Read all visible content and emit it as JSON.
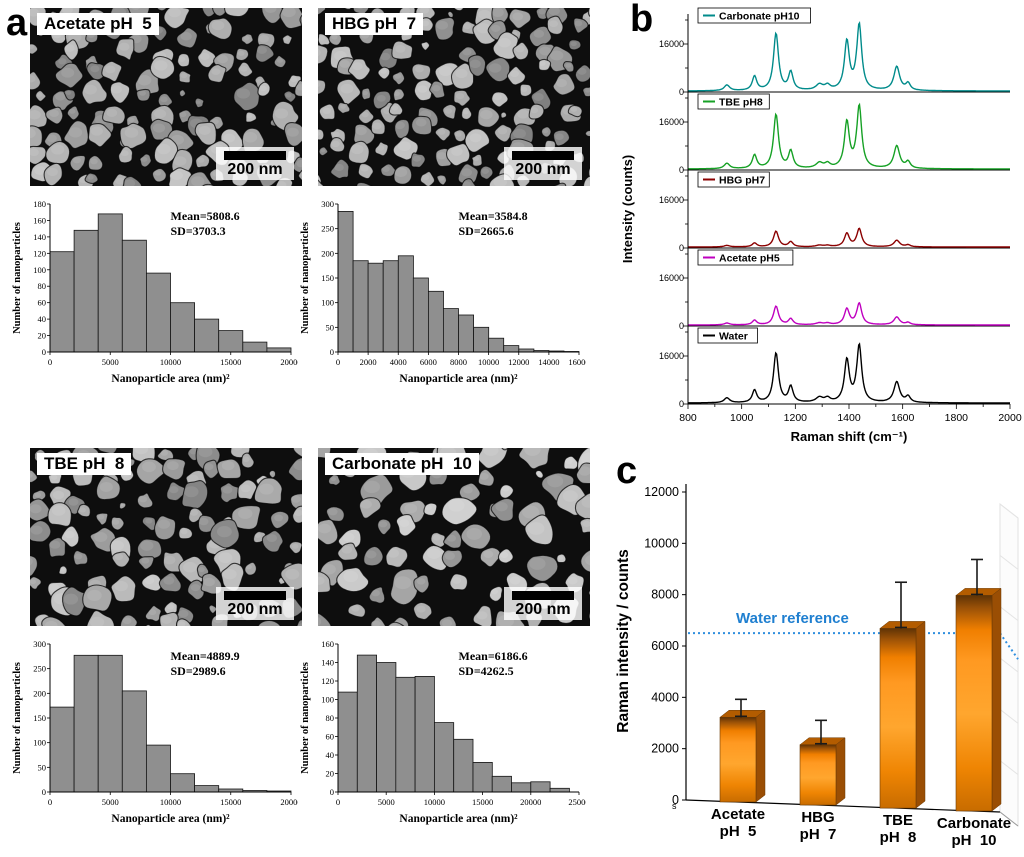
{
  "panels": {
    "a": "a",
    "b": "b",
    "c": "c"
  },
  "panel_a": {
    "subpanels": [
      {
        "id": "acetate-ph5",
        "title": "Acetate pH  5",
        "scalebar": "200 nm",
        "chart_index": 0,
        "sem": {
          "seed": 11,
          "radius": 10.5,
          "gray": 128
        }
      },
      {
        "id": "hbg-ph7",
        "title": "HBG pH  7",
        "scalebar": "200 nm",
        "chart_index": 1,
        "sem": {
          "seed": 22,
          "radius": 10,
          "gray": 128
        }
      },
      {
        "id": "tbe-ph8",
        "title": "TBE pH  8",
        "scalebar": "200 nm",
        "chart_index": 2,
        "sem": {
          "seed": 33,
          "radius": 11,
          "gray": 132
        }
      },
      {
        "id": "carbonate-ph10",
        "title": "Carbonate pH  10",
        "scalebar": "200 nm",
        "chart_index": 3,
        "sem": {
          "seed": 44,
          "radius": 13.5,
          "gray": 140
        }
      }
    ]
  },
  "chart_data": [
    {
      "type": "bar",
      "role": "histogram",
      "title": "Acetate pH 5",
      "mean_label": "Mean=5808.6",
      "sd_label": "SD=3703.3",
      "xlabel": "Nanoparticle area (nm)²",
      "ylabel": "Number of nanoparticles",
      "bin_start": 0,
      "bin_width": 2000,
      "values": [
        122,
        148,
        168,
        136,
        96,
        60,
        40,
        26,
        12,
        5
      ],
      "ylim": [
        0,
        180
      ],
      "ytick_step": 20,
      "xlim": [
        0,
        20000
      ],
      "xtick_step": 5000
    },
    {
      "type": "bar",
      "role": "histogram",
      "title": "HBG pH 7",
      "mean_label": "Mean=3584.8",
      "sd_label": "SD=2665.6",
      "xlabel": "Nanoparticle area (nm)²",
      "ylabel": "Number of nanoparticles",
      "bin_start": 0,
      "bin_width": 1000,
      "values": [
        285,
        185,
        180,
        185,
        195,
        150,
        123,
        88,
        75,
        50,
        28,
        13,
        6,
        3,
        2,
        1
      ],
      "ylim": [
        0,
        300
      ],
      "ytick_step": 50,
      "xlim": [
        0,
        16000
      ],
      "xtick_step": 2000
    },
    {
      "type": "bar",
      "role": "histogram",
      "title": "TBE pH 8",
      "mean_label": "Mean=4889.9",
      "sd_label": "SD=2989.6",
      "xlabel": "Nanoparticle area (nm)²",
      "ylabel": "Number of nanoparticles",
      "bin_start": 0,
      "bin_width": 2000,
      "values": [
        172,
        277,
        277,
        205,
        95,
        37,
        13,
        6,
        3,
        2
      ],
      "ylim": [
        0,
        300
      ],
      "ytick_step": 50,
      "xlim": [
        0,
        20000
      ],
      "xtick_step": 5000
    },
    {
      "type": "bar",
      "role": "histogram",
      "title": "Carbonate pH 10",
      "mean_label": "Mean=6186.6",
      "sd_label": "SD=4262.5",
      "xlabel": "Nanoparticle area (nm)²",
      "ylabel": "Number of nanoparticles",
      "bin_start": 0,
      "bin_width": 2000,
      "values": [
        108,
        148,
        140,
        124,
        125,
        75,
        57,
        32,
        17,
        10,
        11,
        4
      ],
      "ylim": [
        0,
        160
      ],
      "ytick_step": 20,
      "xlim": [
        0,
        25000
      ],
      "xtick_step": 5000
    },
    {
      "type": "line",
      "role": "raman_spectra",
      "xlabel": "Raman shift (cm⁻¹)",
      "ylabel": "Intensity (counts)",
      "x_range": [
        800,
        2000
      ],
      "xtick_step": 200,
      "panel_ymax": 26000,
      "ytick_value": 16000,
      "ytick_label": "16000",
      "yzero_label": "0",
      "peaks": [
        [
          945,
          12,
          0.1
        ],
        [
          1048,
          10,
          0.25
        ],
        [
          1128,
          11,
          1.0
        ],
        [
          1183,
          10,
          0.32
        ],
        [
          1290,
          16,
          0.1
        ],
        [
          1320,
          12,
          0.08
        ],
        [
          1392,
          11,
          0.85
        ],
        [
          1438,
          11,
          1.15
        ],
        [
          1578,
          13,
          0.42
        ],
        [
          1620,
          10,
          0.12
        ]
      ],
      "series": [
        {
          "name": "Carbonate pH10",
          "color": "#008b8b",
          "amp": 19000
        },
        {
          "name": "TBE pH8",
          "color": "#16a125",
          "amp": 18000
        },
        {
          "name": "HBG pH7",
          "color": "#8b0000",
          "amp": 5200
        },
        {
          "name": "Acetate pH5",
          "color": "#bf00bf",
          "amp": 6200
        },
        {
          "name": "Water",
          "color": "#000000",
          "amp": 16500
        }
      ],
      "legend_position": "top-left-of-each-trace",
      "grid": false
    },
    {
      "type": "bar",
      "role": "3d_bar_chart",
      "ylabel": "Raman intensity / counts",
      "ylim": [
        0,
        12000
      ],
      "ytick_step": 2000,
      "categories": [
        "Acetate",
        "HBG",
        "TBE",
        "Carbonate"
      ],
      "ph_labels": [
        "pH  5",
        "pH  7",
        "pH  8",
        "pH  10"
      ],
      "values": [
        3300,
        2350,
        7000,
        8400
      ],
      "errors": [
        700,
        950,
        1800,
        1400
      ],
      "reference": {
        "label": "Water reference",
        "value": 6500,
        "color": "#1f7fd0"
      },
      "bar_color": "#ff9016",
      "stray_label": "s",
      "grid": false
    }
  ]
}
